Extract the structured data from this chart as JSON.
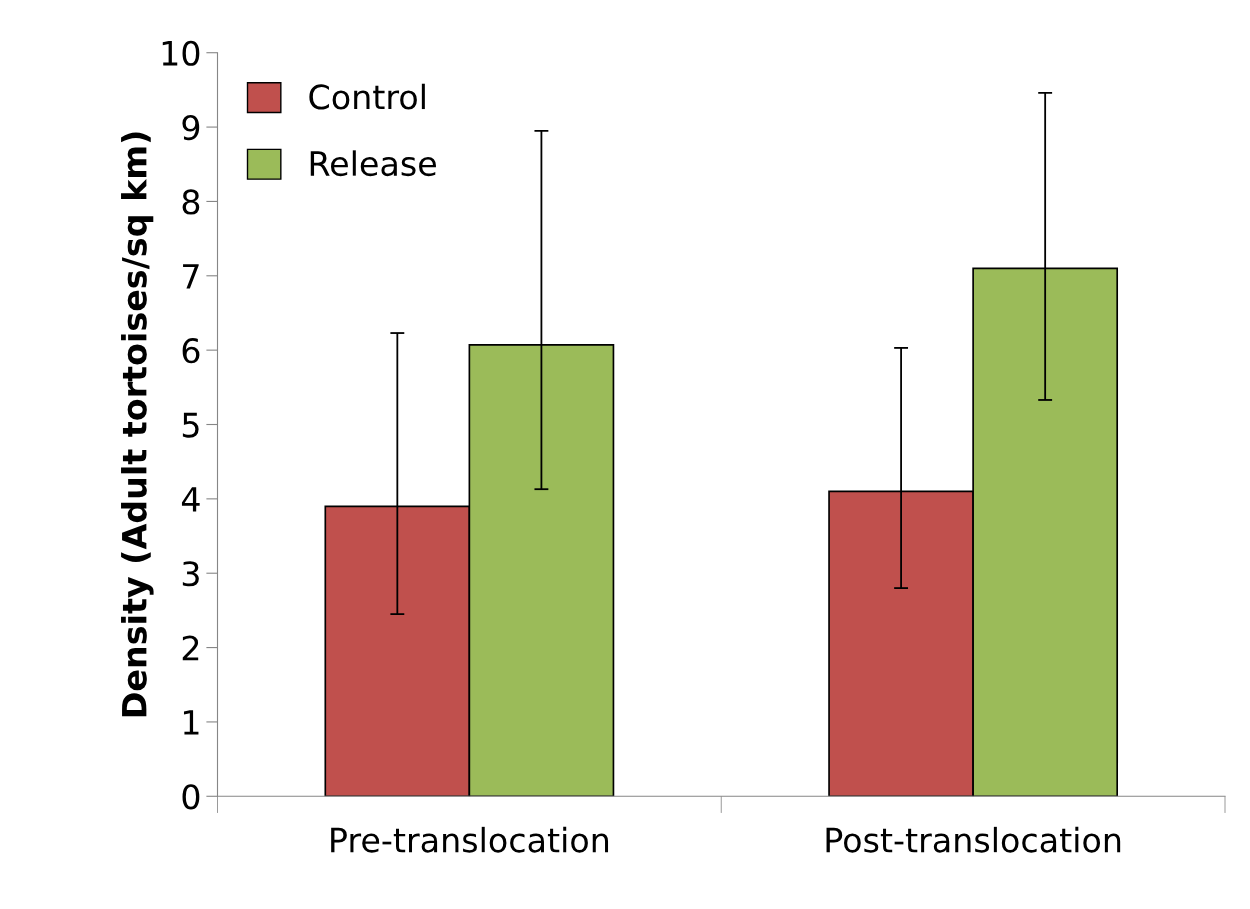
{
  "chart_data": {
    "type": "bar",
    "ylabel": "Density (Adult tortoises/sq km)",
    "categories": [
      "Pre-translocation",
      "Post-translocation"
    ],
    "series": [
      {
        "name": "Control",
        "color": "#c0504d",
        "values": [
          3.9,
          4.1
        ],
        "errors": [
          [
            2.45,
            6.23
          ],
          [
            2.8,
            6.03
          ]
        ]
      },
      {
        "name": "Release",
        "color": "#9bbb59",
        "values": [
          6.07,
          7.1
        ],
        "errors": [
          [
            4.13,
            8.95
          ],
          [
            5.33,
            9.46
          ]
        ]
      }
    ],
    "ylim": [
      0,
      10
    ],
    "yticks": [
      0,
      1,
      2,
      3,
      4,
      5,
      6,
      7,
      8,
      9,
      10
    ],
    "grid": false,
    "legend": "top left"
  }
}
